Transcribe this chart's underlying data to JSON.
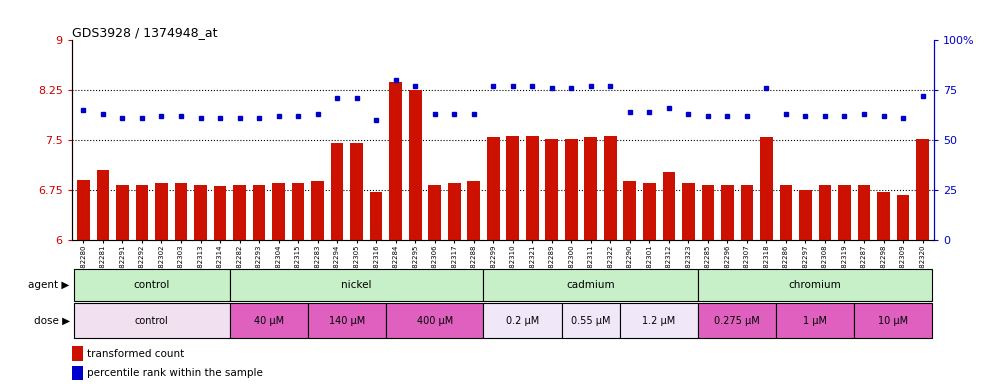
{
  "title": "GDS3928 / 1374948_at",
  "samples": [
    "GSM782280",
    "GSM782281",
    "GSM782291",
    "GSM782292",
    "GSM782302",
    "GSM782303",
    "GSM782313",
    "GSM782314",
    "GSM782282",
    "GSM782293",
    "GSM782304",
    "GSM782315",
    "GSM782283",
    "GSM782294",
    "GSM782305",
    "GSM782316",
    "GSM782284",
    "GSM782295",
    "GSM782306",
    "GSM782317",
    "GSM782288",
    "GSM782299",
    "GSM782310",
    "GSM782321",
    "GSM782289",
    "GSM782300",
    "GSM782311",
    "GSM782322",
    "GSM782290",
    "GSM782301",
    "GSM782312",
    "GSM782323",
    "GSM782285",
    "GSM782296",
    "GSM782307",
    "GSM782318",
    "GSM782286",
    "GSM782297",
    "GSM782308",
    "GSM782319",
    "GSM782287",
    "GSM782298",
    "GSM782309",
    "GSM782320"
  ],
  "bar_values": [
    6.9,
    7.05,
    6.82,
    6.82,
    6.85,
    6.85,
    6.83,
    6.81,
    6.82,
    6.82,
    6.86,
    6.85,
    6.88,
    7.46,
    7.46,
    6.72,
    8.38,
    8.25,
    6.82,
    6.86,
    6.88,
    7.55,
    7.56,
    7.56,
    7.52,
    7.52,
    7.54,
    7.56,
    6.88,
    6.86,
    7.02,
    6.85,
    6.82,
    6.82,
    6.83,
    7.55,
    6.82,
    6.75,
    6.83,
    6.83,
    6.82,
    6.72,
    6.68,
    7.52
  ],
  "dot_values": [
    65,
    63,
    61,
    61,
    62,
    62,
    61,
    61,
    61,
    61,
    62,
    62,
    63,
    71,
    71,
    60,
    80,
    77,
    63,
    63,
    63,
    77,
    77,
    77,
    76,
    76,
    77,
    77,
    64,
    64,
    66,
    63,
    62,
    62,
    62,
    76,
    63,
    62,
    62,
    62,
    63,
    62,
    61,
    72
  ],
  "agent_groups": [
    {
      "label": "control",
      "start": 0,
      "end": 8,
      "color": "#c8f0c8"
    },
    {
      "label": "nickel",
      "start": 8,
      "end": 21,
      "color": "#c8f0c8"
    },
    {
      "label": "cadmium",
      "start": 21,
      "end": 32,
      "color": "#c8f0c8"
    },
    {
      "label": "chromium",
      "start": 32,
      "end": 44,
      "color": "#c8f0c8"
    }
  ],
  "dose_groups": [
    {
      "label": "control",
      "start": 0,
      "end": 8,
      "color": "#f0e0f0"
    },
    {
      "label": "40 μM",
      "start": 8,
      "end": 12,
      "color": "#e060c0"
    },
    {
      "label": "140 μM",
      "start": 12,
      "end": 16,
      "color": "#e060c0"
    },
    {
      "label": "400 μM",
      "start": 16,
      "end": 21,
      "color": "#e060c0"
    },
    {
      "label": "0.2 μM",
      "start": 21,
      "end": 25,
      "color": "#f0e8f8"
    },
    {
      "label": "0.55 μM",
      "start": 25,
      "end": 28,
      "color": "#f0e8f8"
    },
    {
      "label": "1.2 μM",
      "start": 28,
      "end": 32,
      "color": "#f0e8f8"
    },
    {
      "label": "0.275 μM",
      "start": 32,
      "end": 36,
      "color": "#e060c0"
    },
    {
      "label": "1 μM",
      "start": 36,
      "end": 40,
      "color": "#e060c0"
    },
    {
      "label": "10 μM",
      "start": 40,
      "end": 44,
      "color": "#e060c0"
    }
  ],
  "ylim_left": [
    6.0,
    9.0
  ],
  "ylim_right": [
    0,
    100
  ],
  "yticks_left": [
    6.0,
    6.75,
    7.5,
    8.25,
    9.0
  ],
  "ytick_labels_left": [
    "6",
    "6.75",
    "7.5",
    "8.25",
    "9"
  ],
  "yticks_right": [
    0,
    25,
    50,
    75,
    100
  ],
  "ytick_labels_right": [
    "0",
    "25",
    "50",
    "75",
    "100%"
  ],
  "hlines": [
    6.75,
    7.5,
    8.25
  ],
  "bar_color": "#CC1100",
  "dot_color": "#0000CC",
  "bar_width": 0.65
}
